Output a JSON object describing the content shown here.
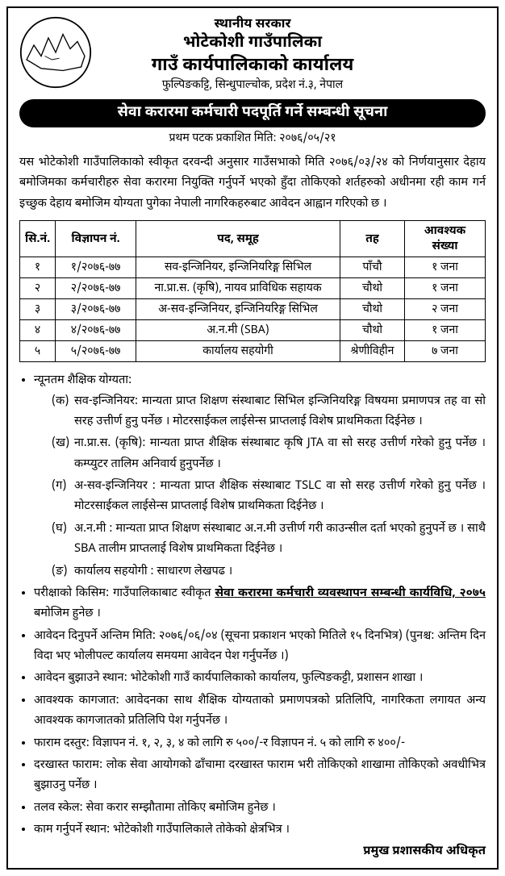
{
  "header": {
    "line1": "स्थानीय सरकार",
    "line2": "भोटेकोशी गाउँपालिका",
    "line3": "गाउँ कार्यपालिकाको कार्यालय",
    "line4": "फुल्पिङकट्टि, सिन्धुपाल्चोक, प्रदेश नं.३, नेपाल"
  },
  "banner": "सेवा करारमा कर्मचारी पदपूर्ति गर्ने सम्बन्धी सूचना",
  "pub_date": "प्रथम पटक प्रकाशित मिति: २०७६/०५/२१",
  "intro": "यस भोटेकोशी गाउँपालिकाको स्वीकृत दरवन्दी अनुसार गाउँसभाको मिति २०७६/०३/२४ को निर्णयानुसार देहाय बमोजिमका कर्मचारीहरु सेवा करारमा नियुक्ति गर्नुपर्ने भएको हुँदा तोकिएको शर्तहरुको अधीनमा रही काम गर्न इच्छुक देहाय बमोजिम योग्यता पुगेका नेपाली नागरिकहरुबाट आवेदन आह्वान गरिएको छ ।",
  "table": {
    "headers": [
      "सि.नं.",
      "विज्ञापन नं.",
      "पद, समूह",
      "तह",
      "आवश्यक संख्या"
    ],
    "rows": [
      [
        "१",
        "१/२०७६-७७",
        "सव-इन्जिनियर, इन्जिनियरिङ्ग सिभिल",
        "पाँचौ",
        "१ जना"
      ],
      [
        "२",
        "२/२०७६-७७",
        "ना.प्रा.स. (कृषि), नायव प्राविधिक सहायक",
        "चौथो",
        "१ जना"
      ],
      [
        "३",
        "३/२०७६-७७",
        "अ-सव-इन्जिनियर, इन्जिनियरिङ्ग सिभिल",
        "चौथो",
        "२ जना"
      ],
      [
        "४",
        "४/२०७६-७७",
        "अ.न.मी (SBA)",
        "चौथो",
        "१ जना"
      ],
      [
        "५",
        "५/२०७६-७७",
        "कार्यालय सहयोगी",
        "श्रेणीविहीन",
        "७ जना"
      ]
    ]
  },
  "edu_heading": "न्यूनतम शैक्षिक योग्यता:",
  "qualifications": [
    {
      "lbl": "(क)",
      "text": "सव-इन्जिनियर: मान्यता प्राप्त शिक्षण संस्थाबाट सिभिल इन्जिनियरिङ्ग विषयमा प्रमाणपत्र तह वा सो सरह उत्तीर्ण हुनु पर्नेछ । मोटरसाईकल लाईसेन्स प्राप्तलाई विशेष प्राथमिकता दिईनेछ ।"
    },
    {
      "lbl": "(ख)",
      "text": "ना.प्रा.स. (कृषि): मान्यता प्राप्त शैक्षिक संस्थाबाट कृषि JTA वा सो सरह उत्तीर्ण गरेको हुनु पर्नेछ । कम्प्युटर तालिम अनिवार्य हुनुपर्नेछ ।"
    },
    {
      "lbl": "(ग)",
      "text": "अ-सव-इन्जिनियर : मान्यता प्राप्त शैक्षिक संस्थाबाट TSLC वा सो सरह उत्तीर्ण गरेको हुनु पर्नेछ । मोटरसाईकल लाईसेन्स प्राप्तलाई विशेष प्राथमिकता दिईनेछ ।"
    },
    {
      "lbl": "(घ)",
      "text": "अ.न.मी : मान्यता प्राप्त शिक्षण संस्थाबाट अ.न.मी उत्तीर्ण गरी काउन्सील दर्ता भएको हुनुपर्ने छ । साथै SBA तालीम प्राप्तलाई विशेष प्राथमिकता दिईनेछ ।"
    },
    {
      "lbl": "(ङ)",
      "text": "कार्यालय सहयोगी : साधारण लेखपढ ।"
    }
  ],
  "bullets": {
    "exam_pre": "परीक्षाको किसिम: गाउँपालिकाबाट स्वीकृत ",
    "exam_bold": "सेवा करारमा कर्मचारी व्यवस्थापन सम्बन्धी कार्यविधि, २०७५",
    "exam_post": " बमोजिम हुनेछ ।",
    "deadline": "आवेदन दिनुपर्ने अन्तिम मिति: २०७६/०६/०४  (सूचना प्रकाशन भएको मितिले १५ दिनभित्र) (पुनश्च: अन्तिम दिन विदा भए भोलीपल्ट कार्यालय समयमा आवेदन पेश गर्नुपर्नेछ ।)",
    "place": "आवेदन बुझाउने स्थान: भोटेकोशी गाउँ कार्यपालिकाको कार्यालय, फुल्पिङकट्टी, प्रशासन शाखा ।",
    "docs": "आवश्यक कागजात: आवेदनका साथ शैक्षिक योग्यताको प्रमाणपत्रको प्रतिलिपि, नागरिकता लगायत अन्य आवश्यक कागजातको प्रतिलिपि पेश गर्नुपर्नेछ ।",
    "fee": "फाराम दस्तुर: विज्ञापन नं. १, २, ३, ४ को लागि रु ५००/-र विज्ञापन नं. ५ को लागि रु ४००/-",
    "form": "दरखास्त फाराम: लोक सेवा आयोगको ढाँचामा दरखास्त फाराम भरी तोकिएको शाखामा तोकिएको अवधीभित्र बुझाउनु पर्नेछ ।",
    "salary": "तलव स्केल: सेवा करार सम्झौतामा तोकिए बमोजिम हुनेछ ।",
    "worklocation": "काम गर्नुपर्ने स्थान: भोटेकोशी गाउँपालिकाले तोकेको क्षेत्रभित्र ।"
  },
  "signature": "प्रमुख प्रशासकीय अधिकृत",
  "colors": {
    "text": "#000000",
    "bg": "#ffffff",
    "border": "#000000"
  }
}
